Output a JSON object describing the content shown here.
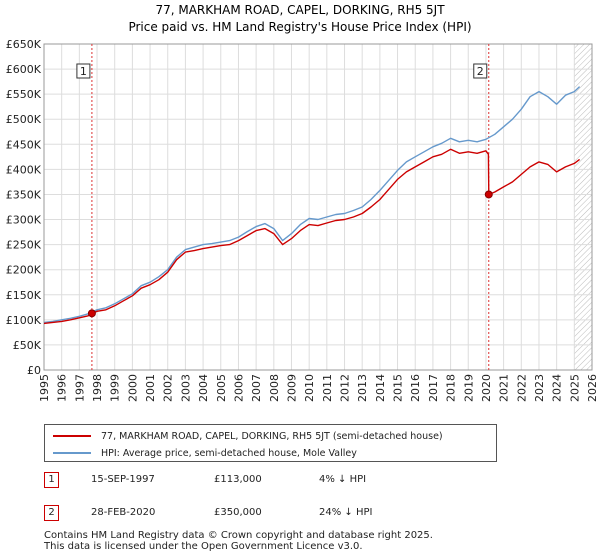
{
  "title_line1": "77, MARKHAM ROAD, CAPEL, DORKING, RH5 5JT",
  "title_line2": "Price paid vs. HM Land Registry's House Price Index (HPI)",
  "colors": {
    "price_line": "#cc0000",
    "hpi_line": "#6699cc",
    "marker_line": "#dd3333",
    "hatch": "#bbbbbb",
    "grid": "#dddddd"
  },
  "legend": {
    "price_label": "77, MARKHAM ROAD, CAPEL, DORKING, RH5 5JT (semi-detached house)",
    "hpi_label": "HPI: Average price, semi-detached house, Mole Valley"
  },
  "annotations": [
    {
      "num": "1",
      "date": "15-SEP-1997",
      "price": "£113,000",
      "hpi": "4% ↓ HPI"
    },
    {
      "num": "2",
      "date": "28-FEB-2020",
      "price": "£350,000",
      "hpi": "24% ↓ HPI"
    }
  ],
  "footer_line1": "Contains HM Land Registry data © Crown copyright and database right 2025.",
  "footer_line2": "This data is licensed under the Open Government Licence v3.0.",
  "chart_data": {
    "type": "line",
    "xlim": [
      1995,
      2026
    ],
    "ylim": [
      0,
      650000
    ],
    "y_ticks": [
      0,
      50000,
      100000,
      150000,
      200000,
      250000,
      300000,
      350000,
      400000,
      450000,
      500000,
      550000,
      600000,
      650000
    ],
    "y_tick_labels": [
      "£0",
      "£50K",
      "£100K",
      "£150K",
      "£200K",
      "£250K",
      "£300K",
      "£350K",
      "£400K",
      "£450K",
      "£500K",
      "£550K",
      "£600K",
      "£650K"
    ],
    "x_ticks": [
      1995,
      1996,
      1997,
      1998,
      1999,
      2000,
      2001,
      2002,
      2003,
      2004,
      2005,
      2006,
      2007,
      2008,
      2009,
      2010,
      2011,
      2012,
      2013,
      2014,
      2015,
      2016,
      2017,
      2018,
      2019,
      2020,
      2021,
      2022,
      2023,
      2024,
      2025,
      2026
    ],
    "x_tick_labels": [
      "1995",
      "1996",
      "1997",
      "1998",
      "1999",
      "2000",
      "2001",
      "2002",
      "2003",
      "2004",
      "2005",
      "2006",
      "2007",
      "2008",
      "2009",
      "2010",
      "2011",
      "2012",
      "2013",
      "2014",
      "2015",
      "2016",
      "2017",
      "2018",
      "2019",
      "2020",
      "2021",
      "2022",
      "2023",
      "2024",
      "2025",
      "2026"
    ],
    "grid": true,
    "hatch_from": 2025.0,
    "sales": [
      {
        "label": "1",
        "x": 1997.71,
        "y": 113000
      },
      {
        "label": "2",
        "x": 2020.16,
        "y": 350000
      }
    ],
    "series": [
      {
        "name": "price_paid",
        "x": [
          1995.0,
          1995.5,
          1996.0,
          1996.5,
          1997.0,
          1997.5,
          1997.71,
          1998.0,
          1998.5,
          1999.0,
          1999.5,
          2000.0,
          2000.5,
          2001.0,
          2001.5,
          2002.0,
          2002.5,
          2003.0,
          2003.5,
          2004.0,
          2004.5,
          2005.0,
          2005.5,
          2006.0,
          2006.5,
          2007.0,
          2007.5,
          2008.0,
          2008.5,
          2009.0,
          2009.5,
          2010.0,
          2010.5,
          2011.0,
          2011.5,
          2012.0,
          2012.5,
          2013.0,
          2013.5,
          2014.0,
          2014.5,
          2015.0,
          2015.5,
          2016.0,
          2016.5,
          2017.0,
          2017.5,
          2018.0,
          2018.5,
          2019.0,
          2019.5,
          2020.0,
          2020.14,
          2020.16,
          2020.5,
          2021.0,
          2021.5,
          2022.0,
          2022.5,
          2023.0,
          2023.5,
          2024.0,
          2024.5,
          2025.0,
          2025.3
        ],
        "y": [
          93000,
          95000,
          97000,
          100000,
          104000,
          108000,
          113000,
          117000,
          120000,
          128000,
          138000,
          148000,
          163000,
          170000,
          180000,
          195000,
          220000,
          235000,
          238000,
          242000,
          245000,
          248000,
          250000,
          258000,
          268000,
          278000,
          282000,
          272000,
          250000,
          262000,
          278000,
          290000,
          288000,
          293000,
          298000,
          300000,
          305000,
          312000,
          325000,
          340000,
          360000,
          380000,
          395000,
          405000,
          415000,
          425000,
          430000,
          440000,
          432000,
          435000,
          432000,
          437000,
          430000,
          350000,
          355000,
          365000,
          375000,
          390000,
          405000,
          415000,
          410000,
          395000,
          405000,
          412000,
          420000
        ]
      },
      {
        "name": "hpi",
        "x": [
          1995.0,
          1995.5,
          1996.0,
          1996.5,
          1997.0,
          1997.5,
          1998.0,
          1998.5,
          1999.0,
          1999.5,
          2000.0,
          2000.5,
          2001.0,
          2001.5,
          2002.0,
          2002.5,
          2003.0,
          2003.5,
          2004.0,
          2004.5,
          2005.0,
          2005.5,
          2006.0,
          2006.5,
          2007.0,
          2007.5,
          2008.0,
          2008.5,
          2009.0,
          2009.5,
          2010.0,
          2010.5,
          2011.0,
          2011.5,
          2012.0,
          2012.5,
          2013.0,
          2013.5,
          2014.0,
          2014.5,
          2015.0,
          2015.5,
          2016.0,
          2016.5,
          2017.0,
          2017.5,
          2018.0,
          2018.5,
          2019.0,
          2019.5,
          2020.0,
          2020.5,
          2021.0,
          2021.5,
          2022.0,
          2022.5,
          2023.0,
          2023.5,
          2024.0,
          2024.5,
          2025.0,
          2025.3
        ],
        "y": [
          95000,
          97000,
          100000,
          103000,
          107000,
          112000,
          120000,
          124000,
          132000,
          142000,
          152000,
          168000,
          175000,
          186000,
          200000,
          225000,
          240000,
          245000,
          250000,
          252000,
          255000,
          258000,
          265000,
          276000,
          286000,
          292000,
          282000,
          258000,
          272000,
          290000,
          302000,
          300000,
          305000,
          310000,
          312000,
          318000,
          325000,
          340000,
          358000,
          378000,
          398000,
          415000,
          425000,
          435000,
          445000,
          452000,
          462000,
          455000,
          458000,
          455000,
          460000,
          470000,
          485000,
          500000,
          520000,
          545000,
          555000,
          545000,
          530000,
          548000,
          555000,
          565000
        ]
      }
    ]
  }
}
